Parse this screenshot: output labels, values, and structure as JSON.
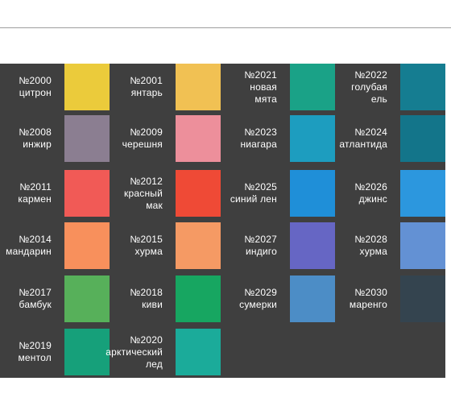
{
  "swatches": [
    {
      "number": "№2000",
      "name": "цитрон",
      "color": "#ebcb3b"
    },
    {
      "number": "№2001",
      "name": "янтарь",
      "color": "#f1c153"
    },
    {
      "number": "№2021",
      "name": "новая мята",
      "color": "#1aa287"
    },
    {
      "number": "№2022",
      "name": "голубая ель",
      "color": "#157d91"
    },
    {
      "number": "№2008",
      "name": "инжир",
      "color": "#8b7e91"
    },
    {
      "number": "№2009",
      "name": "черешня",
      "color": "#ed8f9b"
    },
    {
      "number": "№2023",
      "name": "ниагара",
      "color": "#1d9dbf"
    },
    {
      "number": "№2024",
      "name": "атлантида",
      "color": "#13758a"
    },
    {
      "number": "№2011",
      "name": "кармен",
      "color": "#f15a56"
    },
    {
      "number": "№2012",
      "name": "красный мак",
      "color": "#ef4a36"
    },
    {
      "number": "№2025",
      "name": "синий лен",
      "color": "#1f8fd8"
    },
    {
      "number": "№2026",
      "name": "джинс",
      "color": "#2c97de"
    },
    {
      "number": "№2014",
      "name": "мандарин",
      "color": "#f8905c"
    },
    {
      "number": "№2015",
      "name": "хурма",
      "color": "#f59a64"
    },
    {
      "number": "№2027",
      "name": "индиго",
      "color": "#6666c4"
    },
    {
      "number": "№2028",
      "name": "хурма",
      "color": "#6391d4"
    },
    {
      "number": "№2017",
      "name": "бамбук",
      "color": "#57b05a"
    },
    {
      "number": "№2018",
      "name": "киви",
      "color": "#17a661"
    },
    {
      "number": "№2029",
      "name": "сумерки",
      "color": "#4c8dc6"
    },
    {
      "number": "№2030",
      "name": "маренго",
      "color": "#34444f"
    },
    {
      "number": "№2019",
      "name": "ментол",
      "color": "#16a07a"
    },
    {
      "number": "№2020",
      "name": "арктический лед",
      "color": "#1bab9a"
    }
  ],
  "name_lines": {
    "№2021": [
      "новая",
      "мята"
    ],
    "№2022": [
      "голубая",
      "ель"
    ],
    "№2012": [
      "красный",
      "мак"
    ],
    "№2020": [
      "арктический",
      "лед"
    ]
  }
}
